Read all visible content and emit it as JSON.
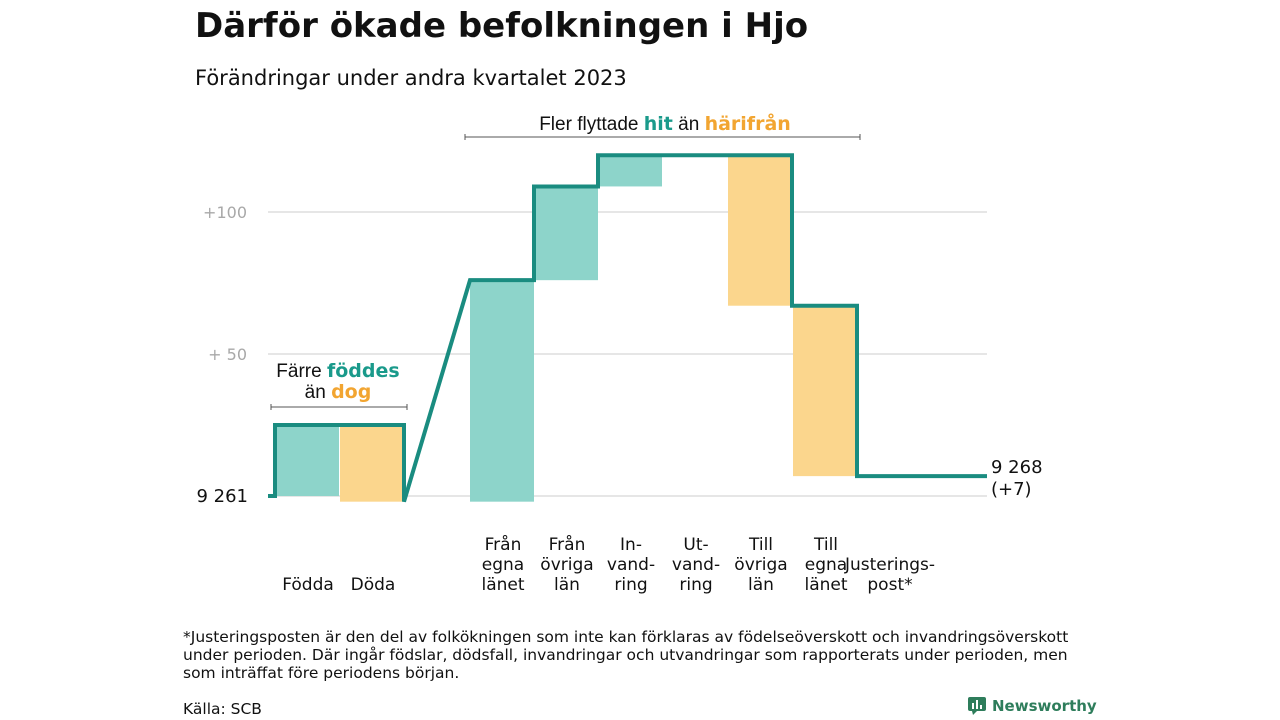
{
  "title": "Därför ökade befolkningen i Hjo",
  "subtitle": "Förändringar under andra kvartalet 2023",
  "annotations": {
    "migration": {
      "prefix": "Fler flyttade",
      "hit": "hit",
      "middle": "än",
      "harifran": "härifrån"
    },
    "births": {
      "prefix": "Färre",
      "fodde": "föddes",
      "middle": "än",
      "dog": "dog"
    }
  },
  "footnote": "*Justeringsposten är den del av folkökningen som inte kan förklaras av födelseöverskott och invandringsöverskott under perioden. Där ingår födslar, dödsfall, invandringar och utvandringar som rapporterats under perioden, men som inträffat före periodens början.",
  "source": "Källa: SCB",
  "brand": "Newsworthy",
  "chart_data": {
    "type": "waterfall",
    "start": {
      "label": "9 261",
      "value": 9261
    },
    "end": {
      "label_line1": "9 268",
      "label_line2": "(+7)",
      "value": 9268
    },
    "yticks": [
      {
        "value": 9361,
        "label": "+100"
      },
      {
        "value": 9311,
        "label": "+  50"
      }
    ],
    "ylim": [
      9255,
      9380
    ],
    "colors": {
      "increase": "#8dd4ca",
      "decrease": "#fbd68d",
      "line": "#1a8c80",
      "grid": "#dddddd"
    },
    "steps": [
      {
        "label": [
          "Födda"
        ],
        "delta": 25,
        "kind": "increase"
      },
      {
        "label": [
          "Döda"
        ],
        "delta": -27,
        "kind": "decrease"
      },
      {
        "label": [
          "Från",
          "egna",
          "länet"
        ],
        "delta": 78,
        "kind": "increase"
      },
      {
        "label": [
          "Från",
          "övriga",
          "län"
        ],
        "delta": 33,
        "kind": "increase"
      },
      {
        "label": [
          "In-",
          "vand-",
          "ring"
        ],
        "delta": 11,
        "kind": "increase"
      },
      {
        "label": [
          "Ut-",
          "vand-",
          "ring"
        ],
        "delta": 0,
        "kind": "decrease"
      },
      {
        "label": [
          "Till",
          "övriga",
          "län"
        ],
        "delta": -53,
        "kind": "decrease"
      },
      {
        "label": [
          "Till",
          "egna",
          "länet"
        ],
        "delta": -60,
        "kind": "decrease"
      },
      {
        "label": [
          "Justerings-",
          "post*"
        ],
        "delta": 0,
        "kind": "increase"
      }
    ]
  }
}
